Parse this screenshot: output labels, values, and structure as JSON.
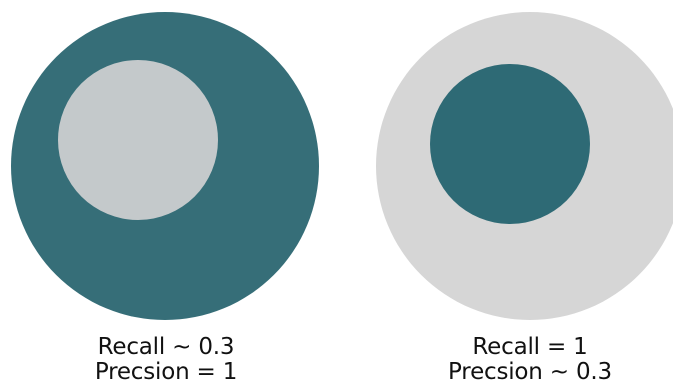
{
  "colors": {
    "teal": "#366e78",
    "teal_dark": "#2e6a75",
    "gray_light": "#c4c9cb",
    "gray_outer": "#d6d6d6"
  },
  "diagrams": [
    {
      "recall_text": "Recall ~ 0.3",
      "precision_text": "Precsion = 1",
      "outer_color": "#366e78",
      "inner_color": "#c4c9cb"
    },
    {
      "recall_text": "Recall = 1",
      "precision_text": "Precsion ~ 0.3",
      "outer_color": "#d6d6d6",
      "inner_color": "#2e6a75"
    }
  ]
}
